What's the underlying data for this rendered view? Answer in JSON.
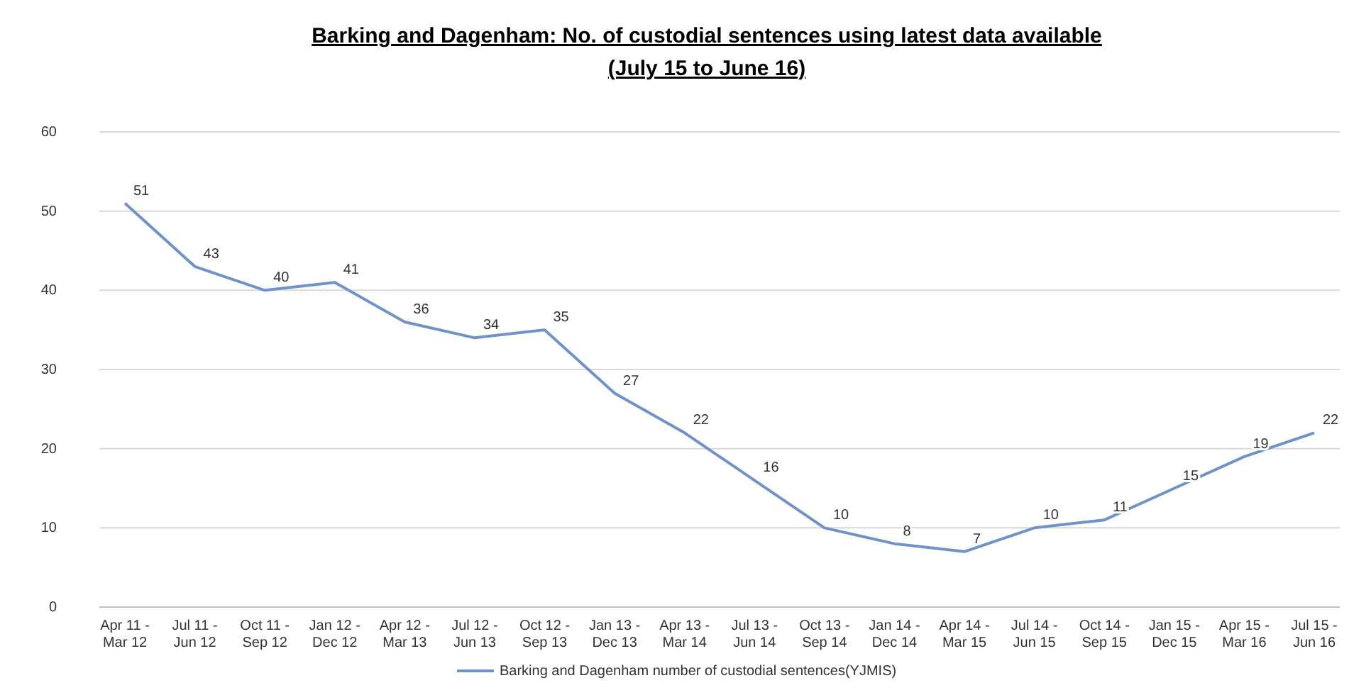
{
  "chart_data": {
    "type": "line",
    "title": "Barking and Dagenham: No. of custodial sentences using latest data available",
    "subtitle": "(July 15 to June 16)",
    "categories": [
      "Apr 11 - Mar 12",
      "Jul 11 - Jun 12",
      "Oct 11 - Sep 12",
      "Jan 12 - Dec 12",
      "Apr 12 - Mar 13",
      "Jul 12 - Jun 13",
      "Oct 12 - Sep 13",
      "Jan 13 - Dec 13",
      "Apr 13 - Mar 14",
      "Jul 13 - Jun 14",
      "Oct 13 - Sep 14",
      "Jan 14 - Dec 14",
      "Apr 14 - Mar 15",
      "Jul 14 - Jun 15",
      "Oct 14 - Sep 15",
      "Jan 15 - Dec 15",
      "Apr 15 - Mar 16",
      "Jul 15 - Jun 16"
    ],
    "series": [
      {
        "name": "Barking and Dagenham number of custodial sentences(YJMIS)",
        "color": "#6f93c8",
        "values": [
          51,
          43,
          40,
          41,
          36,
          34,
          35,
          27,
          22,
          16,
          10,
          8,
          7,
          10,
          11,
          15,
          19,
          22
        ]
      }
    ],
    "ylim": [
      0,
      60
    ],
    "yticks": [
      0,
      10,
      20,
      30,
      40,
      50,
      60
    ],
    "grid": "y",
    "legend": "bottom",
    "data_labels": true,
    "marker": "none",
    "line_style": "solid"
  }
}
